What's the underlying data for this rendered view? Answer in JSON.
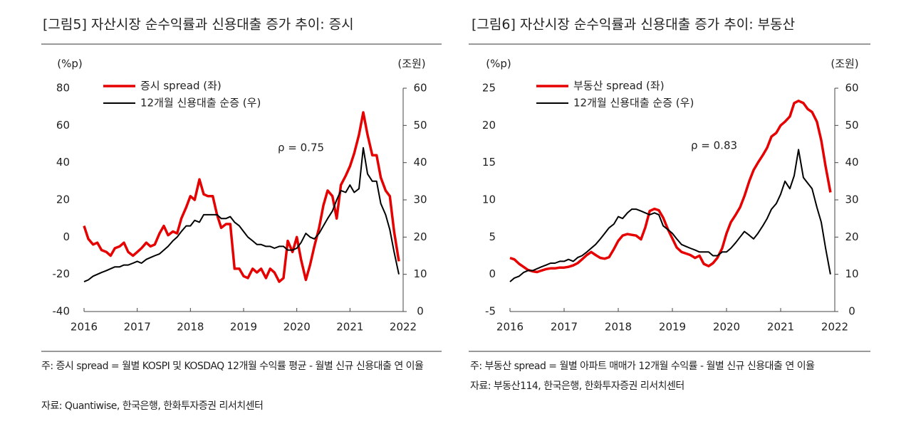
{
  "chart_data": [
    {
      "type": "line",
      "title": "[그림5]   자산시장 순수익률과 신용대출 증가 추이: 증시",
      "ylabel": "(%p)",
      "y2label": "(조원)",
      "annotation": "ρ = 0.75",
      "xlim": [
        2016,
        2022
      ],
      "xticks": [
        2016,
        2017,
        2018,
        2019,
        2020,
        2021,
        2022
      ],
      "ylim": [
        -40,
        80
      ],
      "yticks": [
        -40,
        -20,
        0,
        20,
        40,
        60,
        80
      ],
      "y2lim": [
        0,
        60
      ],
      "y2ticks": [
        0,
        10,
        20,
        30,
        40,
        50,
        60
      ],
      "x": [
        2016.0,
        2016.08,
        2016.17,
        2016.25,
        2016.33,
        2016.42,
        2016.5,
        2016.58,
        2016.67,
        2016.75,
        2016.83,
        2016.92,
        2017.0,
        2017.08,
        2017.17,
        2017.25,
        2017.33,
        2017.42,
        2017.5,
        2017.58,
        2017.67,
        2017.75,
        2017.83,
        2017.92,
        2018.0,
        2018.08,
        2018.17,
        2018.25,
        2018.33,
        2018.42,
        2018.5,
        2018.58,
        2018.67,
        2018.75,
        2018.83,
        2018.92,
        2019.0,
        2019.08,
        2019.17,
        2019.25,
        2019.33,
        2019.42,
        2019.5,
        2019.58,
        2019.67,
        2019.75,
        2019.83,
        2019.92,
        2020.0,
        2020.08,
        2020.17,
        2020.25,
        2020.33,
        2020.42,
        2020.5,
        2020.58,
        2020.67,
        2020.75,
        2020.83,
        2020.92,
        2021.0,
        2021.08,
        2021.17,
        2021.25,
        2021.33,
        2021.42,
        2021.5,
        2021.58,
        2021.67,
        2021.75,
        2021.83,
        2021.92
      ],
      "series": [
        {
          "name": "증시 spread (좌)",
          "color": "#e60000",
          "axis": "y",
          "values": [
            6,
            -1,
            -4,
            -3,
            -7,
            -8,
            -10,
            -6,
            -5,
            -3,
            -8,
            -10,
            -8,
            -6,
            -3,
            -5,
            -4,
            2,
            6,
            1,
            3,
            2,
            10,
            16,
            22,
            20,
            31,
            23,
            22,
            22,
            12,
            5,
            7,
            7,
            -17,
            -17,
            -21,
            -22,
            -17,
            -19,
            -17,
            -22,
            -17,
            -19,
            -24,
            -22,
            -2,
            -8,
            0,
            -12,
            -23,
            -15,
            -5,
            5,
            17,
            25,
            22,
            10,
            28,
            33,
            38,
            45,
            55,
            67,
            55,
            44,
            44,
            32,
            25,
            22,
            3,
            -13
          ]
        },
        {
          "name": "12개월 신용대출 순증 (우)",
          "color": "#000000",
          "axis": "y2",
          "values": [
            8,
            8.5,
            9.5,
            10,
            10.5,
            11,
            11.5,
            12,
            12,
            12.5,
            12.5,
            13,
            13.5,
            13,
            14,
            14.5,
            15,
            15.5,
            16.5,
            17.5,
            19,
            20,
            21.5,
            23,
            23,
            24.5,
            24,
            26,
            26,
            26,
            26,
            25,
            25,
            25.5,
            24,
            23,
            21.5,
            20,
            19,
            18,
            18,
            17.5,
            17.5,
            17,
            17.5,
            17.5,
            16.5,
            16.5,
            17,
            18.5,
            21,
            20,
            19.5,
            21,
            23,
            25,
            27,
            30,
            32.5,
            32,
            34,
            32,
            33,
            44,
            37,
            35,
            35,
            29,
            26,
            22,
            16,
            10
          ]
        }
      ]
    },
    {
      "type": "line",
      "title": "[그림6]   자산시장 순수익률과 신용대출 증가 추이: 부동산",
      "ylabel": "(%p)",
      "y2label": "(조원)",
      "annotation": "ρ = 0.83",
      "xlim": [
        2016,
        2022
      ],
      "xticks": [
        2016,
        2017,
        2018,
        2019,
        2020,
        2021,
        2022
      ],
      "ylim": [
        -5,
        25
      ],
      "yticks": [
        -5,
        0,
        5,
        10,
        15,
        20,
        25
      ],
      "y2lim": [
        0,
        60
      ],
      "y2ticks": [
        0,
        10,
        20,
        30,
        40,
        50,
        60
      ],
      "x": [
        2016.0,
        2016.08,
        2016.17,
        2016.25,
        2016.33,
        2016.42,
        2016.5,
        2016.58,
        2016.67,
        2016.75,
        2016.83,
        2016.92,
        2017.0,
        2017.08,
        2017.17,
        2017.25,
        2017.33,
        2017.42,
        2017.5,
        2017.58,
        2017.67,
        2017.75,
        2017.83,
        2017.92,
        2018.0,
        2018.08,
        2018.17,
        2018.25,
        2018.33,
        2018.42,
        2018.5,
        2018.58,
        2018.67,
        2018.75,
        2018.83,
        2018.92,
        2019.0,
        2019.08,
        2019.17,
        2019.25,
        2019.33,
        2019.42,
        2019.5,
        2019.58,
        2019.67,
        2019.75,
        2019.83,
        2019.92,
        2020.0,
        2020.08,
        2020.17,
        2020.25,
        2020.33,
        2020.42,
        2020.5,
        2020.58,
        2020.67,
        2020.75,
        2020.83,
        2020.92,
        2021.0,
        2021.08,
        2021.17,
        2021.25,
        2021.33,
        2021.42,
        2021.5,
        2021.58,
        2021.67,
        2021.75,
        2021.83,
        2021.92
      ],
      "series": [
        {
          "name": "부동산 spread (좌)",
          "color": "#e60000",
          "axis": "y",
          "values": [
            2.2,
            2.0,
            1.4,
            1.0,
            0.6,
            0.4,
            0.3,
            0.5,
            0.7,
            0.8,
            0.8,
            0.9,
            0.9,
            1.0,
            1.2,
            1.5,
            2.0,
            2.6,
            3.0,
            2.6,
            2.2,
            2.1,
            2.3,
            3.4,
            4.5,
            5.2,
            5.4,
            5.3,
            5.2,
            4.7,
            6.3,
            8.5,
            8.8,
            8.6,
            7.6,
            6.0,
            4.8,
            3.6,
            3.0,
            2.8,
            2.6,
            2.2,
            2.5,
            1.4,
            1.1,
            1.5,
            2.2,
            3.5,
            5.5,
            7.0,
            8.0,
            9.0,
            10.5,
            12.5,
            14.0,
            15.0,
            16.0,
            17.0,
            18.5,
            19.0,
            20.0,
            20.5,
            21.2,
            23.0,
            23.3,
            23.0,
            22.2,
            21.8,
            20.5,
            18.0,
            14.5,
            11.0
          ]
        },
        {
          "name": "12개월 신용대출 순증 (우)",
          "color": "#000000",
          "axis": "y2",
          "values": [
            8,
            9,
            9.5,
            10.5,
            11,
            11,
            11.5,
            12,
            12.5,
            13,
            13,
            13.5,
            13.5,
            14,
            13.5,
            14.5,
            15,
            16,
            17,
            18,
            19.5,
            21,
            22.5,
            23.5,
            25.5,
            25,
            26.5,
            27.5,
            27.5,
            27,
            26.5,
            26,
            26.5,
            26,
            23,
            22,
            21,
            19.5,
            18,
            17.5,
            17,
            16.5,
            16,
            16,
            16,
            15,
            15,
            16,
            16,
            17,
            18.5,
            20,
            21.5,
            20.5,
            19.5,
            21,
            23,
            25,
            27.5,
            29,
            31.5,
            35,
            33,
            36.5,
            43.5,
            36,
            34.5,
            33,
            28,
            24,
            17,
            10
          ]
        }
      ]
    }
  ],
  "notes": [
    [
      "주: 증시 spread = 월별 KOSPI 및 KOSDAQ 12개월 수익률 평균 - 월별 신규 신용대출 연 이율",
      "자료: Quantiwise, 한국은행, 한화투자증권 리서치센터"
    ],
    [
      "주: 부동산 spread = 월별 아파트 매매가 12개월 수익률 - 월별 신규 신용대출 연 이율",
      "자료: 부동산114, 한국은행, 한화투자증권 리서치센터"
    ]
  ]
}
